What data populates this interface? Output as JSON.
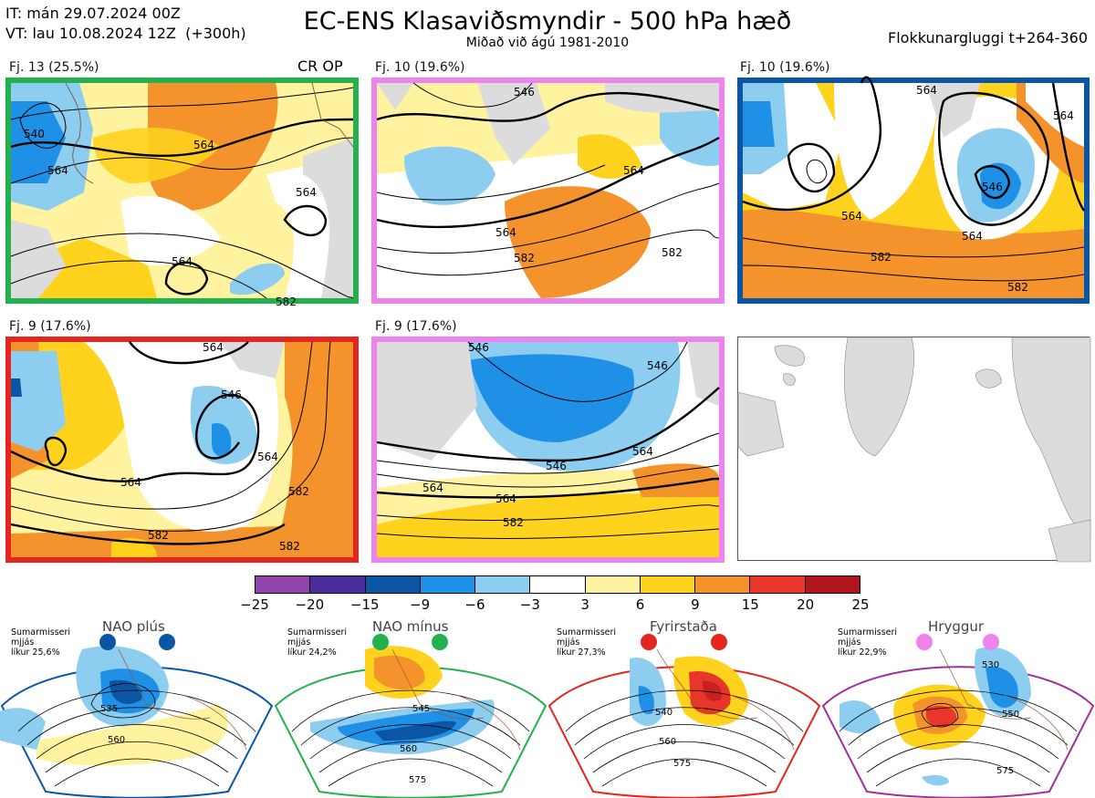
{
  "header": {
    "init_line": "IT: mán 29.07.2024 00Z",
    "valid_line": "VT: lau 10.08.2024 12Z  (+300h)",
    "title": "EC-ENS Klasaviðsmyndir - 500 hPa hæð",
    "subtitle": "Miðað við ágú 1981-2010",
    "window": "Flokkunargluggi t+264-360"
  },
  "clusters": [
    {
      "label": "Fj. 13 (25.5%)",
      "tag": "CR OP",
      "border_color": "#22b14c",
      "contour_labels": [
        "540",
        "564",
        "564",
        "564",
        "564",
        "582"
      ]
    },
    {
      "label": "Fj. 10 (19.6%)",
      "tag": "",
      "border_color": "#ee82ee",
      "contour_labels": [
        "546",
        "564",
        "564",
        "582",
        "582"
      ]
    },
    {
      "label": "Fj. 10 (19.6%)",
      "tag": "",
      "border_color": "#0a56a4",
      "contour_labels": [
        "564",
        "546",
        "564",
        "582",
        "582",
        "564",
        "564"
      ]
    },
    {
      "label": "Fj. 9 (17.6%)",
      "tag": "",
      "border_color": "#e5251f",
      "contour_labels": [
        "564",
        "546",
        "564",
        "564",
        "582",
        "582",
        "582"
      ]
    },
    {
      "label": "Fj. 9 (17.6%)",
      "tag": "",
      "border_color": "#ee82ee",
      "contour_labels": [
        "546",
        "546",
        "546",
        "564",
        "564",
        "564",
        "582"
      ]
    }
  ],
  "colorbar": {
    "colors": [
      "#8e44a8",
      "#4a2c9a",
      "#0a56a4",
      "#1e90e6",
      "#8ccdf0",
      "#ffffff",
      "#fff3a0",
      "#ffd21e",
      "#f4922c",
      "#e8362a",
      "#b0141c"
    ],
    "ticks": [
      "−25",
      "−20",
      "−15",
      "−9",
      "−6",
      "−3",
      "3",
      "6",
      "9",
      "15",
      "20",
      "25"
    ]
  },
  "regimes": [
    {
      "name": "NAO plús",
      "season": "Sumarmisseri",
      "mode": "mjjás",
      "probability": "líkur 25,6%",
      "color": "#0a56a4",
      "contour_labels": [
        "535",
        "560"
      ]
    },
    {
      "name": "NAO mínus",
      "season": "Sumarmisseri",
      "mode": "mjjás",
      "probability": "líkur 24,2%",
      "color": "#22b14c",
      "contour_labels": [
        "545",
        "560",
        "575"
      ]
    },
    {
      "name": "Fyrirstaða",
      "season": "Sumarmisseri",
      "mode": "mjjás",
      "probability": "líkur 27,3%",
      "color": "#e5251f",
      "contour_labels": [
        "540",
        "560",
        "575"
      ]
    },
    {
      "name": "Hryggur",
      "season": "Sumarmisseri",
      "mode": "mjjás",
      "probability": "líkur 22,9%",
      "color": "#a0309a",
      "dot_color": "#ee82ee",
      "contour_labels": [
        "530",
        "550",
        "575"
      ]
    }
  ]
}
